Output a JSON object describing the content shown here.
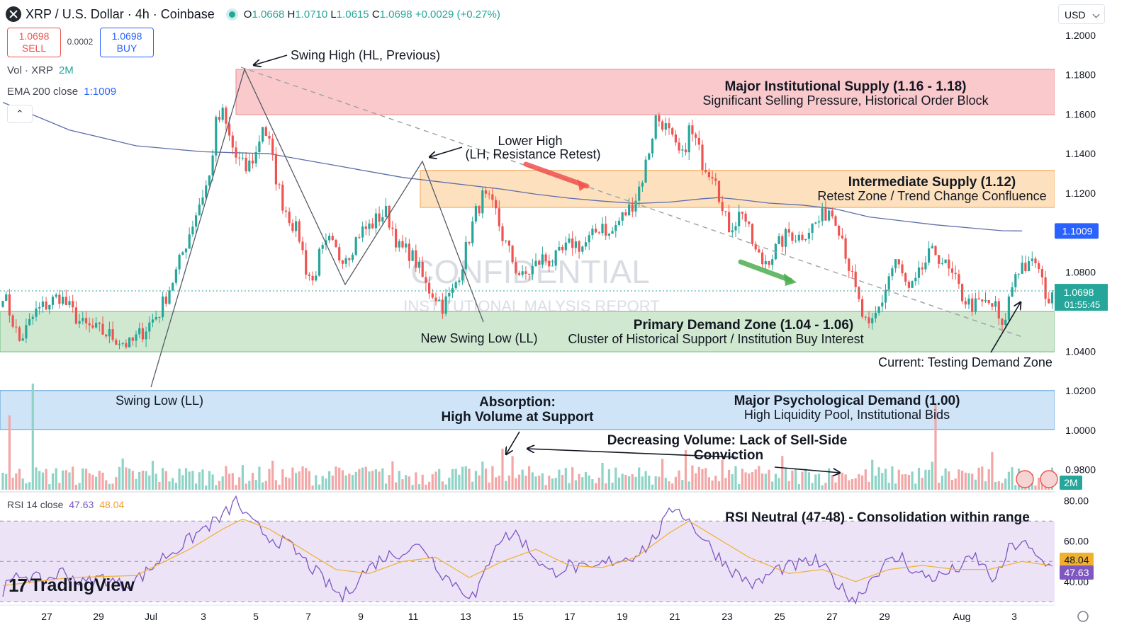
{
  "header": {
    "symbol": "XRP / U.S. Dollar · 4h · Coinbase",
    "open_label": "O",
    "open": "1.0668",
    "high_label": "H",
    "high": "1.0710",
    "low_label": "L",
    "low": "1.0615",
    "close_label": "C",
    "close": "1.0698",
    "change": "+0.0029 (+0.27%)"
  },
  "trade": {
    "sell_price": "1.0698",
    "sell_label": "SELL",
    "spread": "0.0002",
    "buy_price": "1.0698",
    "buy_label": "BUY"
  },
  "legends": {
    "vol_label": "Vol · XRP",
    "vol_value": "2M",
    "ema_label": "EMA 200 close",
    "ema_value": "1:1009",
    "rsi_label": "RSI 14 close",
    "rsi_value": "47.63",
    "rsi_ma_value": "48.04"
  },
  "currency_selector": "USD",
  "brand": "TradingView",
  "colors": {
    "up": "#26a69a",
    "down": "#ef5350",
    "ema": "#5b6ea8",
    "rsi": "#7e57c2",
    "rsi_ma": "#f0b030",
    "supply_major": "#f9c9cc",
    "supply_mid": "#fde0bd",
    "demand_primary": "#cfe8cf",
    "demand_major": "#cfe4f7",
    "price_tag": "#26a69a",
    "ema_tag": "#2962ff"
  },
  "chart_data": {
    "type": "candlestick",
    "price_axis": {
      "ticks": [
        "1.2000",
        "1.1800",
        "1.1600",
        "1.1400",
        "1.1200",
        "1.0800",
        "1.0400",
        "1.0200",
        "1.0000",
        "0.9800"
      ],
      "range": [
        0.9695,
        1.2035
      ],
      "current_price": "1.0698",
      "countdown": "01:55:45",
      "ema_tag": "1.1009",
      "volume_tag": "2M"
    },
    "time_axis": {
      "ticks": [
        "27",
        "29",
        "Jul",
        "3",
        "5",
        "7",
        "9",
        "11",
        "13",
        "15",
        "17",
        "19",
        "21",
        "23",
        "25",
        "27",
        "29",
        "Aug",
        "3"
      ]
    },
    "rsi_axis": {
      "ticks": [
        "80.00",
        "60.00",
        "40.00"
      ],
      "range": [
        29.4,
        82.7
      ],
      "band": [
        30,
        70
      ],
      "rsi_tag": "47.63",
      "rsi_ma_tag": "48.04"
    },
    "zones": [
      {
        "name": "Major Institutional Supply (1.16 - 1.18)",
        "subtitle": "Significant Selling Pressure, Historical Order Block",
        "low": 1.1598,
        "high": 1.1827
      },
      {
        "name": "Intermediate Supply (1.12)",
        "subtitle": "Retest Zone / Trend Change Confluence",
        "low": 1.1128,
        "high": 1.1316
      },
      {
        "name": "Primary Demand Zone (1.04 - 1.06)",
        "subtitle": "Cluster of Historical Support / Institution Buy Interest",
        "low": 1.0397,
        "high": 1.0601
      },
      {
        "name": "Major Psychological Demand (1.00)",
        "subtitle": "High Liquidity Pool, Institutional Bids",
        "low": 1.0004,
        "high": 1.0201
      }
    ],
    "annotations": [
      "Swing High (HL, Previous)",
      "Lower High",
      "(LH, Resistance Retest)",
      "New Swing Low (LL)",
      "Swing Low (LL)",
      "Absorption:",
      "High Volume at Support",
      "Decreasing Volume: Lack of Sell-Side",
      "Conviction",
      "Current: Testing Demand Zone",
      "RSI Neutral (47-48) - Consolidation within range"
    ],
    "watermark": [
      "CONFIDENTIAL",
      "INSTITUTIONAL MALYSIS REPORT"
    ],
    "anchors": [
      [
        0,
        1.07
      ],
      [
        5,
        1.045
      ],
      [
        10,
        1.06
      ],
      [
        17,
        1.068
      ],
      [
        24,
        1.053
      ],
      [
        31,
        1.049
      ],
      [
        38,
        1.043
      ],
      [
        42,
        1.05
      ],
      [
        47,
        1.06
      ],
      [
        52,
        1.08
      ],
      [
        56,
        1.1
      ],
      [
        59,
        1.115
      ],
      [
        62,
        1.128
      ],
      [
        64,
        1.155
      ],
      [
        66,
        1.16
      ],
      [
        68,
        1.148
      ],
      [
        70,
        1.138
      ],
      [
        73,
        1.132
      ],
      [
        76,
        1.14
      ],
      [
        78,
        1.155
      ],
      [
        80,
        1.145
      ],
      [
        82,
        1.128
      ],
      [
        84,
        1.115
      ],
      [
        86,
        1.108
      ],
      [
        89,
        1.098
      ],
      [
        91,
        1.082
      ],
      [
        93,
        1.075
      ],
      [
        95,
        1.088
      ],
      [
        98,
        1.095
      ],
      [
        101,
        1.088
      ],
      [
        104,
        1.09
      ],
      [
        107,
        1.1
      ],
      [
        110,
        1.103
      ],
      [
        113,
        1.108
      ],
      [
        115,
        1.11
      ],
      [
        117,
        1.102
      ],
      [
        119,
        1.092
      ],
      [
        122,
        1.09
      ],
      [
        124,
        1.085
      ],
      [
        127,
        1.073
      ],
      [
        130,
        1.068
      ],
      [
        132,
        1.063
      ],
      [
        135,
        1.07
      ],
      [
        138,
        1.085
      ],
      [
        140,
        1.098
      ],
      [
        142,
        1.11
      ],
      [
        144,
        1.118
      ],
      [
        146,
        1.115
      ],
      [
        148,
        1.11
      ],
      [
        150,
        1.098
      ],
      [
        152,
        1.09
      ],
      [
        154,
        1.082
      ],
      [
        156,
        1.077
      ],
      [
        159,
        1.082
      ],
      [
        162,
        1.087
      ],
      [
        165,
        1.085
      ],
      [
        168,
        1.09
      ],
      [
        171,
        1.095
      ],
      [
        174,
        1.093
      ],
      [
        177,
        1.098
      ],
      [
        180,
        1.105
      ],
      [
        182,
        1.098
      ],
      [
        185,
        1.106
      ],
      [
        188,
        1.112
      ],
      [
        190,
        1.118
      ],
      [
        192,
        1.128
      ],
      [
        194,
        1.142
      ],
      [
        196,
        1.158
      ],
      [
        198,
        1.156
      ],
      [
        200,
        1.15
      ],
      [
        202,
        1.142
      ],
      [
        204,
        1.138
      ],
      [
        206,
        1.152
      ],
      [
        208,
        1.146
      ],
      [
        210,
        1.136
      ],
      [
        212,
        1.132
      ],
      [
        214,
        1.13
      ],
      [
        216,
        1.11
      ],
      [
        218,
        1.103
      ],
      [
        220,
        1.106
      ],
      [
        222,
        1.112
      ],
      [
        224,
        1.1
      ],
      [
        226,
        1.09
      ],
      [
        228,
        1.085
      ],
      [
        231,
        1.089
      ],
      [
        233,
        1.094
      ],
      [
        236,
        1.1
      ],
      [
        239,
        1.098
      ],
      [
        242,
        1.102
      ],
      [
        245,
        1.106
      ],
      [
        248,
        1.112
      ],
      [
        250,
        1.108
      ],
      [
        252,
        1.098
      ],
      [
        254,
        1.083
      ],
      [
        256,
        1.07
      ],
      [
        258,
        1.058
      ],
      [
        260,
        1.05
      ],
      [
        262,
        1.058
      ],
      [
        264,
        1.066
      ],
      [
        266,
        1.078
      ],
      [
        268,
        1.086
      ],
      [
        270,
        1.078
      ],
      [
        272,
        1.07
      ],
      [
        274,
        1.074
      ],
      [
        276,
        1.082
      ],
      [
        278,
        1.088
      ],
      [
        280,
        1.09
      ],
      [
        282,
        1.086
      ],
      [
        284,
        1.08
      ],
      [
        286,
        1.075
      ],
      [
        288,
        1.068
      ],
      [
        290,
        1.064
      ],
      [
        292,
        1.063
      ],
      [
        294,
        1.064
      ],
      [
        296,
        1.064
      ],
      [
        298,
        1.062
      ],
      [
        300,
        1.05
      ],
      [
        302,
        1.066
      ],
      [
        304,
        1.08
      ],
      [
        306,
        1.084
      ],
      [
        308,
        1.082
      ],
      [
        310,
        1.086
      ],
      [
        312,
        1.074
      ],
      [
        314,
        1.066
      ],
      [
        315,
        1.0698
      ]
    ],
    "ema_path": [
      [
        0,
        1.166
      ],
      [
        20,
        1.152
      ],
      [
        40,
        1.144
      ],
      [
        60,
        1.141
      ],
      [
        70,
        1.1405
      ],
      [
        80,
        1.14
      ],
      [
        90,
        1.137
      ],
      [
        100,
        1.134
      ],
      [
        110,
        1.131
      ],
      [
        120,
        1.128
      ],
      [
        130,
        1.126
      ],
      [
        140,
        1.124
      ],
      [
        150,
        1.122
      ],
      [
        160,
        1.1195
      ],
      [
        170,
        1.1175
      ],
      [
        180,
        1.116
      ],
      [
        190,
        1.1148
      ],
      [
        200,
        1.1155
      ],
      [
        210,
        1.1172
      ],
      [
        215,
        1.1178
      ],
      [
        220,
        1.117
      ],
      [
        230,
        1.115
      ],
      [
        240,
        1.114
      ],
      [
        250,
        1.112
      ],
      [
        260,
        1.108
      ],
      [
        270,
        1.106
      ],
      [
        280,
        1.104
      ],
      [
        290,
        1.1025
      ],
      [
        300,
        1.101
      ],
      [
        306,
        1.1009
      ]
    ],
    "rsi_anchors": [
      [
        0,
        36
      ],
      [
        6,
        44
      ],
      [
        12,
        40
      ],
      [
        18,
        45
      ],
      [
        24,
        39
      ],
      [
        30,
        42
      ],
      [
        36,
        38
      ],
      [
        42,
        43
      ],
      [
        48,
        52
      ],
      [
        54,
        58
      ],
      [
        60,
        66
      ],
      [
        66,
        72
      ],
      [
        70,
        80
      ],
      [
        74,
        70
      ],
      [
        80,
        62
      ],
      [
        86,
        58
      ],
      [
        92,
        48
      ],
      [
        98,
        38
      ],
      [
        102,
        32
      ],
      [
        108,
        44
      ],
      [
        114,
        52
      ],
      [
        120,
        55
      ],
      [
        126,
        58
      ],
      [
        132,
        44
      ],
      [
        138,
        36
      ],
      [
        142,
        32
      ],
      [
        148,
        60
      ],
      [
        154,
        64
      ],
      [
        158,
        56
      ],
      [
        164,
        44
      ],
      [
        170,
        48
      ],
      [
        176,
        45
      ],
      [
        182,
        50
      ],
      [
        188,
        52
      ],
      [
        194,
        58
      ],
      [
        198,
        68
      ],
      [
        202,
        78
      ],
      [
        208,
        66
      ],
      [
        214,
        54
      ],
      [
        220,
        44
      ],
      [
        226,
        38
      ],
      [
        232,
        46
      ],
      [
        238,
        48
      ],
      [
        244,
        50
      ],
      [
        248,
        44
      ],
      [
        252,
        36
      ],
      [
        256,
        31
      ],
      [
        260,
        40
      ],
      [
        264,
        48
      ],
      [
        270,
        52
      ],
      [
        274,
        44
      ],
      [
        280,
        42
      ],
      [
        286,
        46
      ],
      [
        292,
        52
      ],
      [
        298,
        40
      ],
      [
        302,
        56
      ],
      [
        306,
        60
      ],
      [
        310,
        52
      ],
      [
        314,
        47.63
      ]
    ],
    "rsi_ma_anchors": [
      [
        0,
        38
      ],
      [
        20,
        42
      ],
      [
        40,
        43
      ],
      [
        56,
        56
      ],
      [
        66,
        66
      ],
      [
        72,
        71
      ],
      [
        80,
        66
      ],
      [
        90,
        56
      ],
      [
        100,
        46
      ],
      [
        110,
        44
      ],
      [
        120,
        50
      ],
      [
        130,
        52
      ],
      [
        140,
        42
      ],
      [
        150,
        50
      ],
      [
        160,
        56
      ],
      [
        170,
        48
      ],
      [
        180,
        47
      ],
      [
        190,
        52
      ],
      [
        200,
        64
      ],
      [
        206,
        70
      ],
      [
        214,
        62
      ],
      [
        224,
        52
      ],
      [
        236,
        44
      ],
      [
        246,
        46
      ],
      [
        256,
        40
      ],
      [
        266,
        46
      ],
      [
        276,
        48
      ],
      [
        286,
        46
      ],
      [
        296,
        46
      ],
      [
        306,
        50
      ],
      [
        314,
        48.04
      ]
    ]
  }
}
